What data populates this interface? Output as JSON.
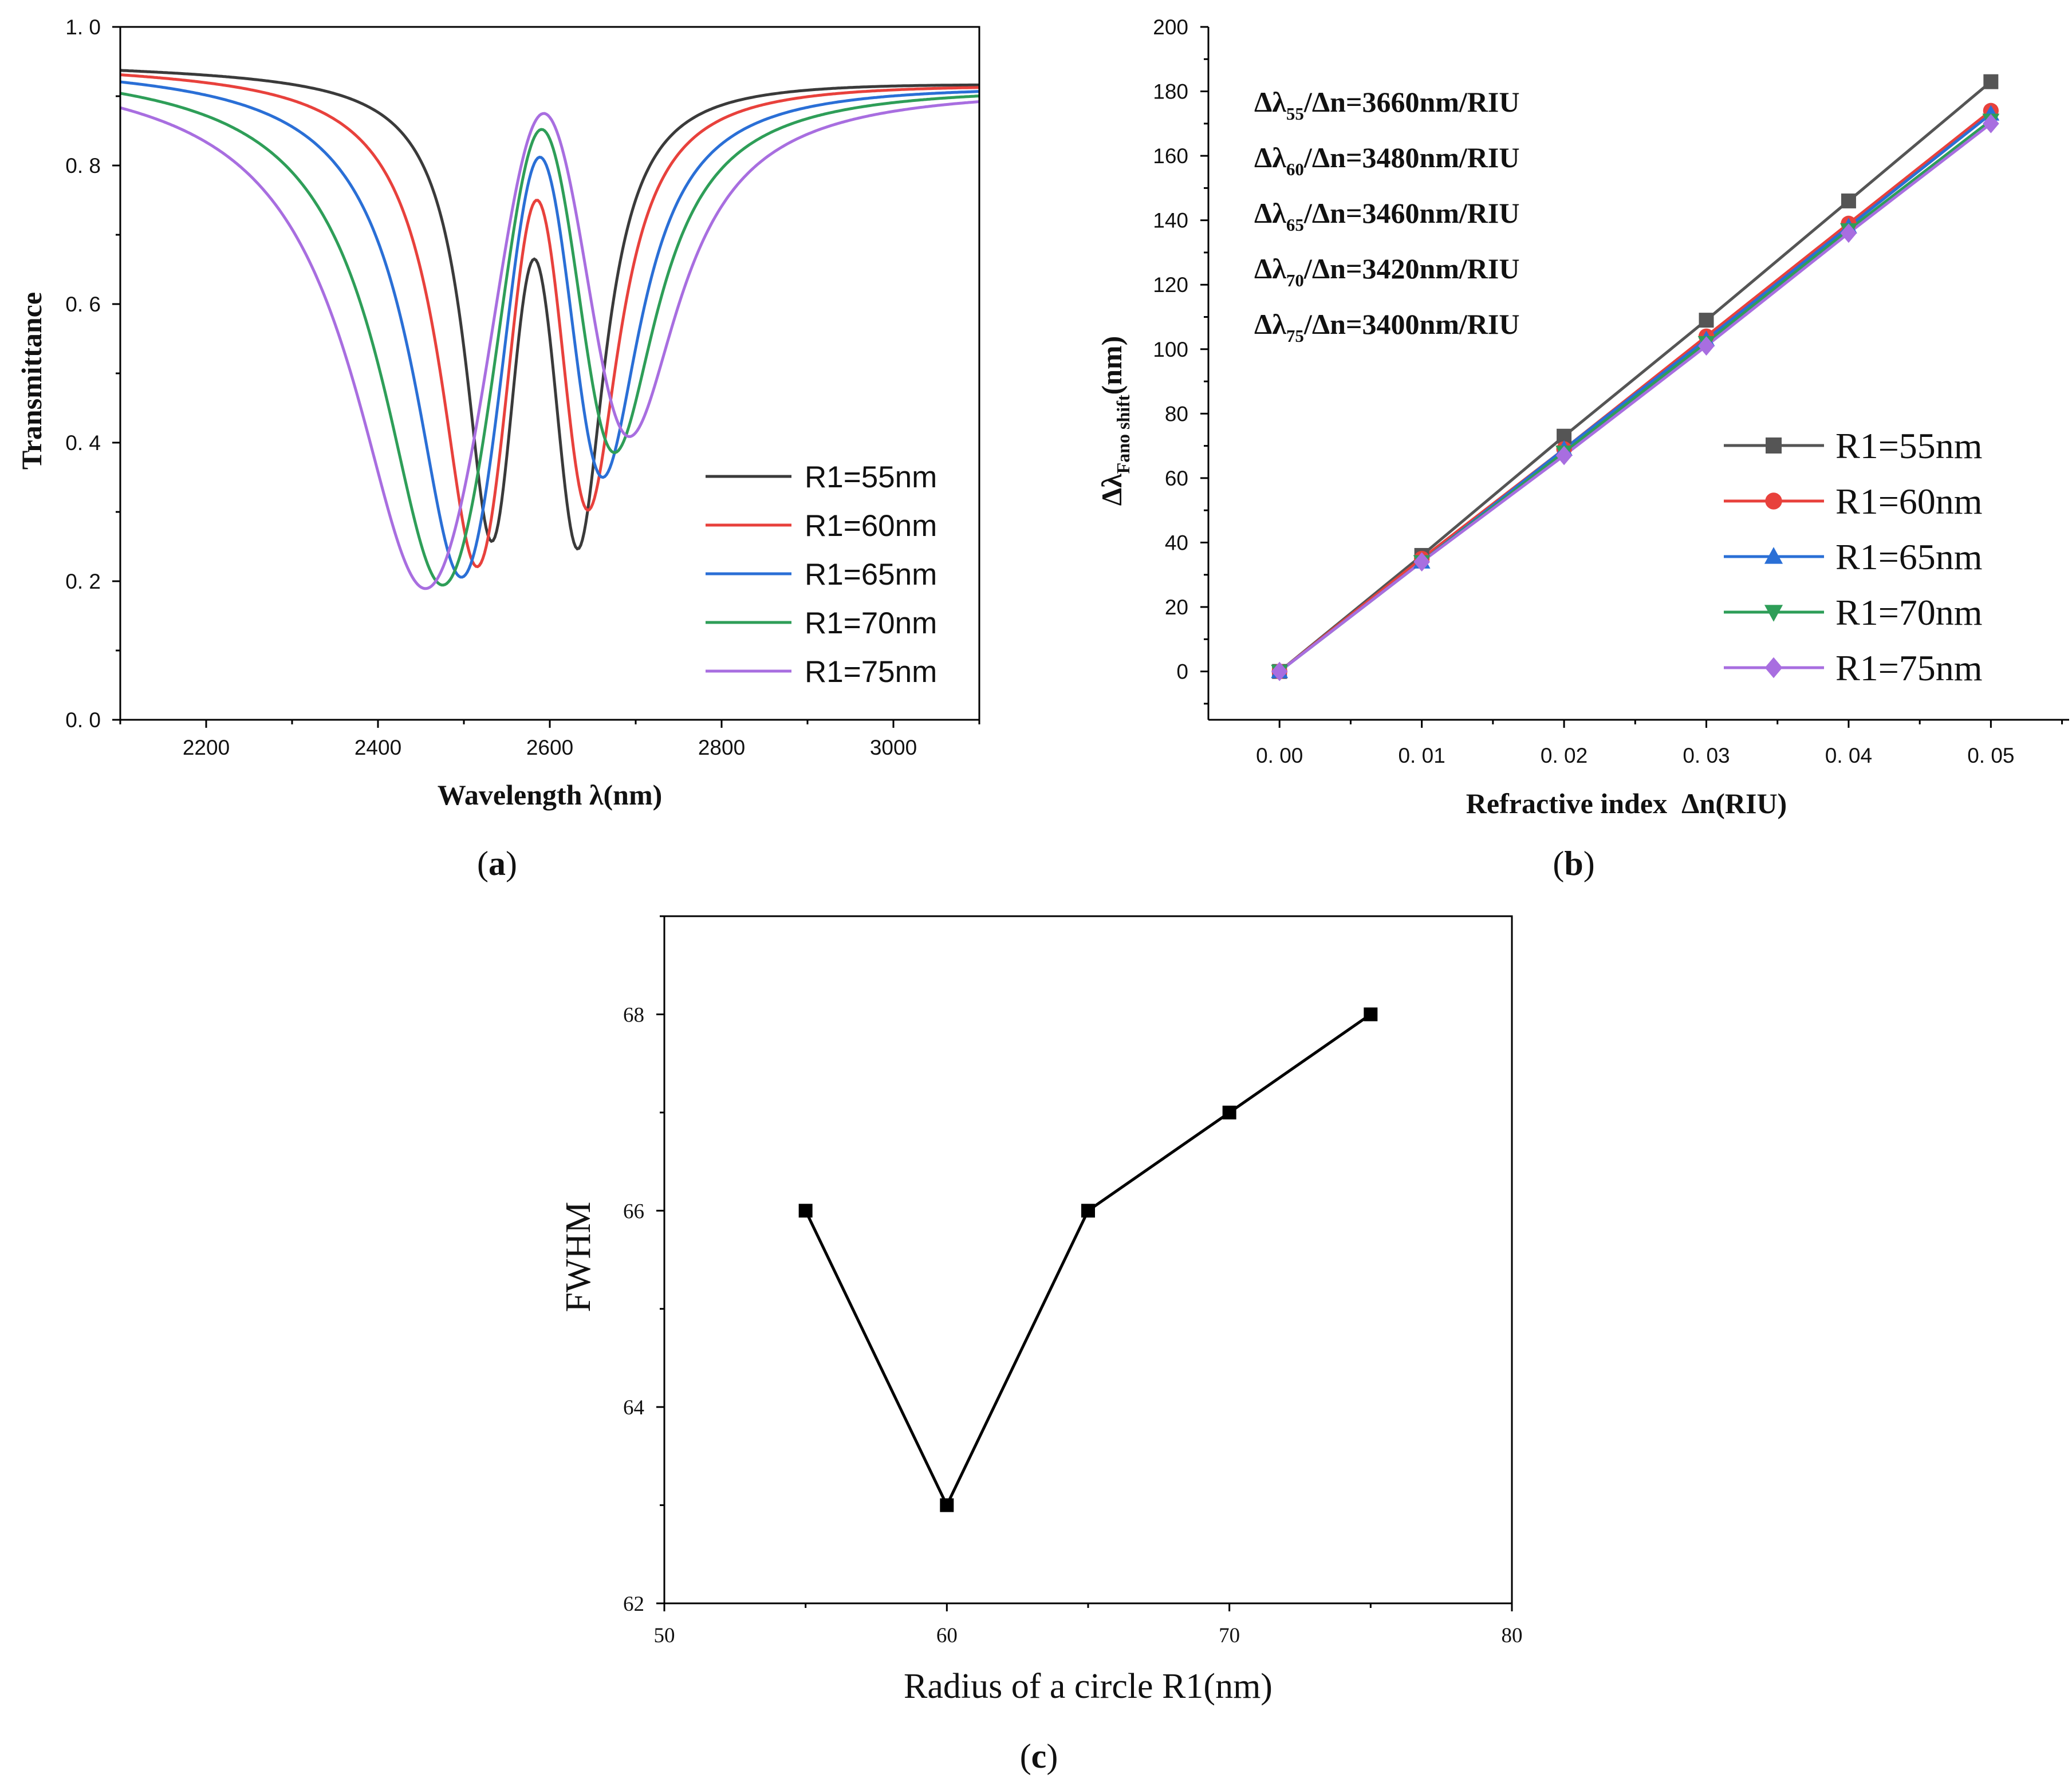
{
  "chart_data": [
    {
      "id": "a",
      "type": "line",
      "panel_label": "a",
      "xlabel": "Wavelength λ(nm)",
      "ylabel": "Transmittance",
      "xlim": [
        2100,
        3100
      ],
      "ylim": [
        0.0,
        1.0
      ],
      "xticks": [
        "2200",
        "2400",
        "2600",
        "2800",
        "3000"
      ],
      "xtick_values": [
        2200,
        2400,
        2600,
        2800,
        3000
      ],
      "yticks": [
        "0. 0",
        "0. 2",
        "0. 4",
        "0. 6",
        "0. 8",
        "1. 0"
      ],
      "ytick_values": [
        0.0,
        0.2,
        0.4,
        0.6,
        0.8,
        1.0
      ],
      "legend_position": "lower-right",
      "series": [
        {
          "name": "R1=55nm",
          "color": "#3a3a3a",
          "dip1": {
            "x": 2532,
            "y": 0.25
          },
          "peak": {
            "x": 2582,
            "y": 0.665
          },
          "dip2": {
            "x": 2633,
            "y": 0.24
          }
        },
        {
          "name": "R1=60nm",
          "color": "#e8413c",
          "dip1": {
            "x": 2515,
            "y": 0.215
          },
          "peak": {
            "x": 2585,
            "y": 0.75
          },
          "dip2": {
            "x": 2644,
            "y": 0.285
          }
        },
        {
          "name": "R1=65nm",
          "color": "#2a6fd6",
          "dip1": {
            "x": 2497,
            "y": 0.2
          },
          "peak": {
            "x": 2588,
            "y": 0.812
          },
          "dip2": {
            "x": 2660,
            "y": 0.325
          }
        },
        {
          "name": "R1=70nm",
          "color": "#2e9e58",
          "dip1": {
            "x": 2475,
            "y": 0.19
          },
          "peak": {
            "x": 2590,
            "y": 0.852
          },
          "dip2": {
            "x": 2672,
            "y": 0.35
          }
        },
        {
          "name": "R1=75nm",
          "color": "#a86ee0",
          "dip1": {
            "x": 2455,
            "y": 0.185
          },
          "peak": {
            "x": 2592,
            "y": 0.875
          },
          "dip2": {
            "x": 2688,
            "y": 0.37
          }
        }
      ]
    },
    {
      "id": "b",
      "type": "line",
      "panel_label": "b",
      "xlabel": "Refractive index  Δn(RIU)",
      "ylabel": "Δλ",
      "ylabel_sub": "Fano shift",
      "ylabel_suffix": "(nm)",
      "xlim": [
        -0.005,
        0.0555
      ],
      "ylim": [
        -15,
        200
      ],
      "categories": [
        "0. 00",
        "0. 01",
        "0. 02",
        "0. 03",
        "0. 04",
        "0. 05"
      ],
      "x": [
        0.0,
        0.01,
        0.02,
        0.03,
        0.04,
        0.05
      ],
      "yticks": [
        "0",
        "20",
        "40",
        "60",
        "80",
        "100",
        "120",
        "140",
        "160",
        "180",
        "200"
      ],
      "ytick_values": [
        0,
        20,
        40,
        60,
        80,
        100,
        120,
        140,
        160,
        180,
        200
      ],
      "legend_position": "lower-right",
      "annotations": [
        {
          "pre": "Δλ",
          "sub": "55",
          "post": "/Δn=3660nm/RIU"
        },
        {
          "pre": "Δλ",
          "sub": "60",
          "post": "/Δn=3480nm/RIU"
        },
        {
          "pre": "Δλ",
          "sub": "65",
          "post": "/Δn=3460nm/RIU"
        },
        {
          "pre": "Δλ",
          "sub": "70",
          "post": "/Δn=3420nm/RIU"
        },
        {
          "pre": "Δλ",
          "sub": "75",
          "post": "/Δn=3400nm/RIU"
        }
      ],
      "series": [
        {
          "name": "R1=55nm",
          "color": "#555555",
          "marker": "square",
          "values": [
            0,
            36,
            73,
            109,
            146,
            183
          ]
        },
        {
          "name": "R1=60nm",
          "color": "#e8413c",
          "marker": "circle",
          "values": [
            0,
            35,
            69,
            104,
            139,
            174
          ]
        },
        {
          "name": "R1=65nm",
          "color": "#2a6fd6",
          "marker": "triangle-up",
          "values": [
            0,
            34,
            69,
            103,
            138,
            173
          ]
        },
        {
          "name": "R1=70nm",
          "color": "#2e9e58",
          "marker": "triangle-down",
          "values": [
            0,
            34,
            68,
            102,
            137,
            171
          ]
        },
        {
          "name": "R1=75nm",
          "color": "#a86ee0",
          "marker": "diamond",
          "values": [
            0,
            34,
            67,
            101,
            136,
            170
          ]
        }
      ]
    },
    {
      "id": "c",
      "type": "line",
      "panel_label": "c",
      "xlabel": "Radius of a circle R1(nm)",
      "ylabel": "FWHM",
      "xlim": [
        50,
        80
      ],
      "ylim": [
        62,
        69
      ],
      "xticks": [
        "50",
        "60",
        "70",
        "80"
      ],
      "xtick_values": [
        50,
        60,
        70,
        80
      ],
      "yticks": [
        "62",
        "64",
        "66",
        "68"
      ],
      "ytick_values": [
        62,
        64,
        66,
        68
      ],
      "x": [
        55,
        60,
        65,
        70,
        75
      ],
      "series": [
        {
          "name": "FWHM",
          "color": "#000000",
          "marker": "square",
          "values": [
            66,
            63,
            66,
            67,
            68
          ]
        }
      ]
    }
  ]
}
